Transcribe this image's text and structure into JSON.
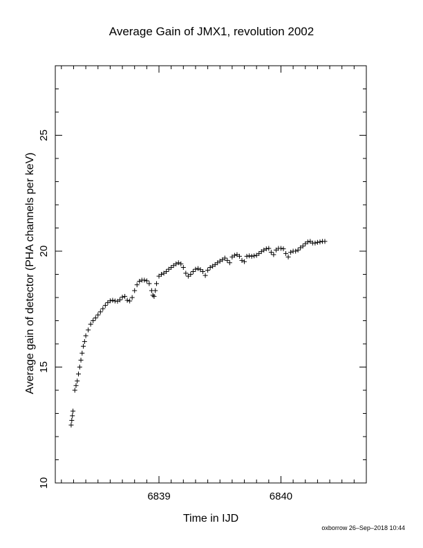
{
  "footer": "oxborrow 26–Sep–2018 10:44",
  "chart_data": {
    "type": "scatter",
    "title": "Average Gain of JMX1, revolution 2002",
    "xlabel": "Time in IJD",
    "ylabel": "Average gain of detector (PHA channels per keV)",
    "xlim": [
      6838.15,
      6840.7
    ],
    "ylim": [
      10,
      28
    ],
    "xticks": [
      6839,
      6840
    ],
    "yticks": [
      10,
      15,
      20,
      25
    ],
    "marker": "plus",
    "grid": false,
    "points": [
      [
        6838.28,
        12.5
      ],
      [
        6838.285,
        12.7
      ],
      [
        6838.29,
        12.9
      ],
      [
        6838.295,
        13.1
      ],
      [
        6838.31,
        14.0
      ],
      [
        6838.32,
        14.2
      ],
      [
        6838.33,
        14.4
      ],
      [
        6838.34,
        14.7
      ],
      [
        6838.35,
        15.0
      ],
      [
        6838.36,
        15.3
      ],
      [
        6838.37,
        15.6
      ],
      [
        6838.38,
        15.9
      ],
      [
        6838.39,
        16.1
      ],
      [
        6838.4,
        16.35
      ],
      [
        6838.42,
        16.6
      ],
      [
        6838.44,
        16.85
      ],
      [
        6838.46,
        17.0
      ],
      [
        6838.48,
        17.12
      ],
      [
        6838.5,
        17.25
      ],
      [
        6838.52,
        17.38
      ],
      [
        6838.54,
        17.52
      ],
      [
        6838.56,
        17.66
      ],
      [
        6838.58,
        17.78
      ],
      [
        6838.6,
        17.86
      ],
      [
        6838.62,
        17.88
      ],
      [
        6838.64,
        17.85
      ],
      [
        6838.66,
        17.84
      ],
      [
        6838.68,
        17.9
      ],
      [
        6838.7,
        18.02
      ],
      [
        6838.72,
        18.05
      ],
      [
        6838.74,
        17.88
      ],
      [
        6838.76,
        17.85
      ],
      [
        6838.78,
        18.0
      ],
      [
        6838.8,
        18.3
      ],
      [
        6838.82,
        18.55
      ],
      [
        6838.84,
        18.7
      ],
      [
        6838.86,
        18.75
      ],
      [
        6838.88,
        18.75
      ],
      [
        6838.9,
        18.72
      ],
      [
        6838.92,
        18.6
      ],
      [
        6838.94,
        18.3
      ],
      [
        6838.95,
        18.1
      ],
      [
        6838.96,
        18.05
      ],
      [
        6838.97,
        18.3
      ],
      [
        6838.98,
        18.6
      ],
      [
        6839.0,
        18.92
      ],
      [
        6839.02,
        19.0
      ],
      [
        6839.04,
        19.05
      ],
      [
        6839.06,
        19.12
      ],
      [
        6839.08,
        19.22
      ],
      [
        6839.1,
        19.3
      ],
      [
        6839.12,
        19.38
      ],
      [
        6839.14,
        19.45
      ],
      [
        6839.16,
        19.5
      ],
      [
        6839.18,
        19.45
      ],
      [
        6839.2,
        19.3
      ],
      [
        6839.22,
        19.05
      ],
      [
        6839.24,
        18.92
      ],
      [
        6839.26,
        19.0
      ],
      [
        6839.28,
        19.12
      ],
      [
        6839.3,
        19.22
      ],
      [
        6839.32,
        19.25
      ],
      [
        6839.34,
        19.2
      ],
      [
        6839.36,
        19.12
      ],
      [
        6839.38,
        18.95
      ],
      [
        6839.4,
        19.18
      ],
      [
        6839.42,
        19.3
      ],
      [
        6839.44,
        19.35
      ],
      [
        6839.46,
        19.42
      ],
      [
        6839.48,
        19.5
      ],
      [
        6839.5,
        19.57
      ],
      [
        6839.52,
        19.63
      ],
      [
        6839.54,
        19.7
      ],
      [
        6839.56,
        19.6
      ],
      [
        6839.58,
        19.5
      ],
      [
        6839.6,
        19.75
      ],
      [
        6839.62,
        19.82
      ],
      [
        6839.64,
        19.85
      ],
      [
        6839.66,
        19.78
      ],
      [
        6839.68,
        19.6
      ],
      [
        6839.7,
        19.55
      ],
      [
        6839.72,
        19.78
      ],
      [
        6839.74,
        19.8
      ],
      [
        6839.76,
        19.78
      ],
      [
        6839.78,
        19.8
      ],
      [
        6839.8,
        19.82
      ],
      [
        6839.82,
        19.9
      ],
      [
        6839.84,
        19.98
      ],
      [
        6839.86,
        20.05
      ],
      [
        6839.88,
        20.1
      ],
      [
        6839.9,
        20.12
      ],
      [
        6839.92,
        19.95
      ],
      [
        6839.94,
        19.85
      ],
      [
        6839.96,
        20.05
      ],
      [
        6839.98,
        20.12
      ],
      [
        6840.0,
        20.12
      ],
      [
        6840.02,
        20.1
      ],
      [
        6840.04,
        19.9
      ],
      [
        6840.06,
        19.75
      ],
      [
        6840.08,
        19.95
      ],
      [
        6840.1,
        20.0
      ],
      [
        6840.12,
        20.0
      ],
      [
        6840.14,
        20.05
      ],
      [
        6840.16,
        20.15
      ],
      [
        6840.18,
        20.22
      ],
      [
        6840.2,
        20.32
      ],
      [
        6840.22,
        20.4
      ],
      [
        6840.24,
        20.42
      ],
      [
        6840.26,
        20.35
      ],
      [
        6840.28,
        20.35
      ],
      [
        6840.3,
        20.38
      ],
      [
        6840.32,
        20.4
      ],
      [
        6840.34,
        20.42
      ],
      [
        6840.36,
        20.42
      ]
    ]
  }
}
